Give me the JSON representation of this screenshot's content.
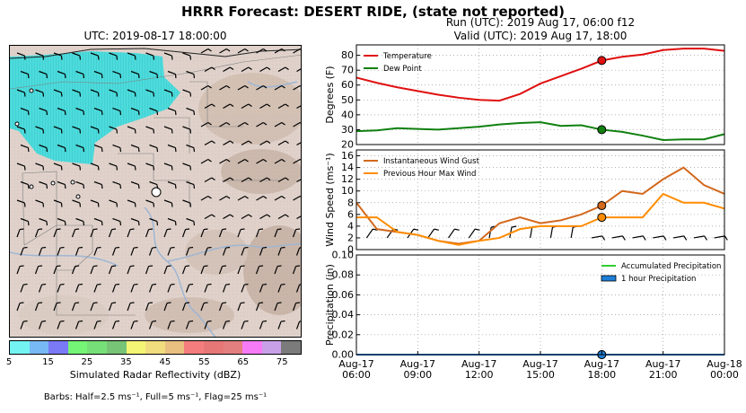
{
  "suptitle": "HRRR Forecast: DESERT RIDE, (state not reported)",
  "map": {
    "title": "UTC: 2019-08-17 18:00:00",
    "colorbar": {
      "label": "Simulated Radar Reflectivity (dBZ)",
      "ticks": [
        "5",
        "15",
        "25",
        "35",
        "45",
        "55",
        "65",
        "75"
      ],
      "colors": [
        "#74f3f3",
        "#77b9f4",
        "#7a7af7",
        "#75f575",
        "#77df77",
        "#77c477",
        "#f5f575",
        "#f1dc7e",
        "#e9c080",
        "#f67d7d",
        "#e77777",
        "#e37f7f",
        "#f77af7",
        "#c8a0e8",
        "#7b7b7b"
      ]
    },
    "barbs_note": "Barbs: Half=2.5 ms⁻¹, Full=5 ms⁻¹, Flag=25 ms⁻¹"
  },
  "run_title": {
    "line1": "Run (UTC): 2019 Aug 17, 06:00 f12",
    "line2": "Valid (UTC): 2019 Aug 17, 18:00"
  },
  "chart_data": [
    {
      "type": "line",
      "ylabel": "Degrees (F)",
      "ylim": [
        20,
        87
      ],
      "yticks": [
        20,
        30,
        40,
        50,
        60,
        70,
        80
      ],
      "grid": true,
      "legend": "top-left",
      "x_hours": [
        6,
        7,
        8,
        9,
        10,
        11,
        12,
        13,
        14,
        15,
        16,
        17,
        18,
        19,
        20,
        21,
        22,
        23,
        24
      ],
      "series": [
        {
          "name": "Temperature",
          "color": "#e01010",
          "values": [
            65,
            61.5,
            58.5,
            56,
            53.5,
            51.5,
            50,
            49.5,
            54,
            61,
            66,
            71,
            76.5,
            79,
            80.5,
            83.5,
            84.5,
            84.5,
            83
          ]
        },
        {
          "name": "Dew Point",
          "color": "#108010",
          "values": [
            29,
            29.5,
            31,
            30.5,
            30,
            31,
            32,
            33.5,
            34.5,
            35,
            32.5,
            33,
            30,
            28.5,
            26,
            23,
            23.5,
            23.5,
            27
          ]
        }
      ],
      "marker_hour": 18
    },
    {
      "type": "line",
      "ylabel": "Wind Speed (ms⁻¹)",
      "ylim": [
        0,
        17
      ],
      "yticks": [
        0,
        2,
        4,
        6,
        8,
        10,
        12,
        14,
        16
      ],
      "grid": true,
      "legend": "top-left",
      "x_hours": [
        6,
        7,
        8,
        9,
        10,
        11,
        12,
        13,
        14,
        15,
        16,
        17,
        18,
        19,
        20,
        21,
        22,
        23,
        24
      ],
      "series": [
        {
          "name": "Instantaneous Wind Gust",
          "color": "#d2691e",
          "values": [
            8,
            3.5,
            3,
            2.5,
            1.5,
            1,
            1.5,
            4.5,
            5.5,
            4.5,
            5,
            6,
            7.5,
            10,
            9.5,
            12,
            14,
            11,
            9.5
          ]
        },
        {
          "name": "Previous Hour Max Wind",
          "color": "#ff8c00",
          "values": [
            5.5,
            5.5,
            3,
            2.5,
            1.5,
            0.8,
            1.5,
            2,
            3.5,
            4,
            4,
            4,
            5.5,
            5.5,
            5.5,
            9.5,
            8,
            8,
            7
          ]
        }
      ],
      "marker_hour": 18
    },
    {
      "type": "area",
      "ylabel": "Precipitation (in)",
      "ylim": [
        0,
        0.1
      ],
      "yticks": [
        "0.00",
        "0.02",
        "0.04",
        "0.06",
        "0.08",
        "0.10"
      ],
      "grid": true,
      "legend": "top-right",
      "series": [
        {
          "name": "Accumulated Precipitation",
          "color": "#32cd32",
          "values": [
            0,
            0,
            0,
            0,
            0,
            0,
            0,
            0,
            0,
            0,
            0,
            0,
            0,
            0,
            0,
            0,
            0,
            0,
            0
          ]
        },
        {
          "name": "1 hour Precipitation",
          "color": "#1e7fd8",
          "values": [
            0,
            0,
            0,
            0,
            0,
            0,
            0,
            0,
            0,
            0,
            0,
            0,
            0,
            0,
            0,
            0,
            0,
            0,
            0
          ]
        }
      ],
      "marker_hour": 18
    }
  ],
  "x_axis": {
    "xlim_hours": [
      6,
      24
    ],
    "tick_hours": [
      6,
      9,
      12,
      15,
      18,
      21,
      24
    ],
    "tick_labels": [
      [
        "Aug-17",
        "06:00"
      ],
      [
        "Aug-17",
        "09:00"
      ],
      [
        "Aug-17",
        "12:00"
      ],
      [
        "Aug-17",
        "15:00"
      ],
      [
        "Aug-17",
        "18:00"
      ],
      [
        "Aug-17",
        "21:00"
      ],
      [
        "Aug-18",
        "00:00"
      ]
    ]
  }
}
